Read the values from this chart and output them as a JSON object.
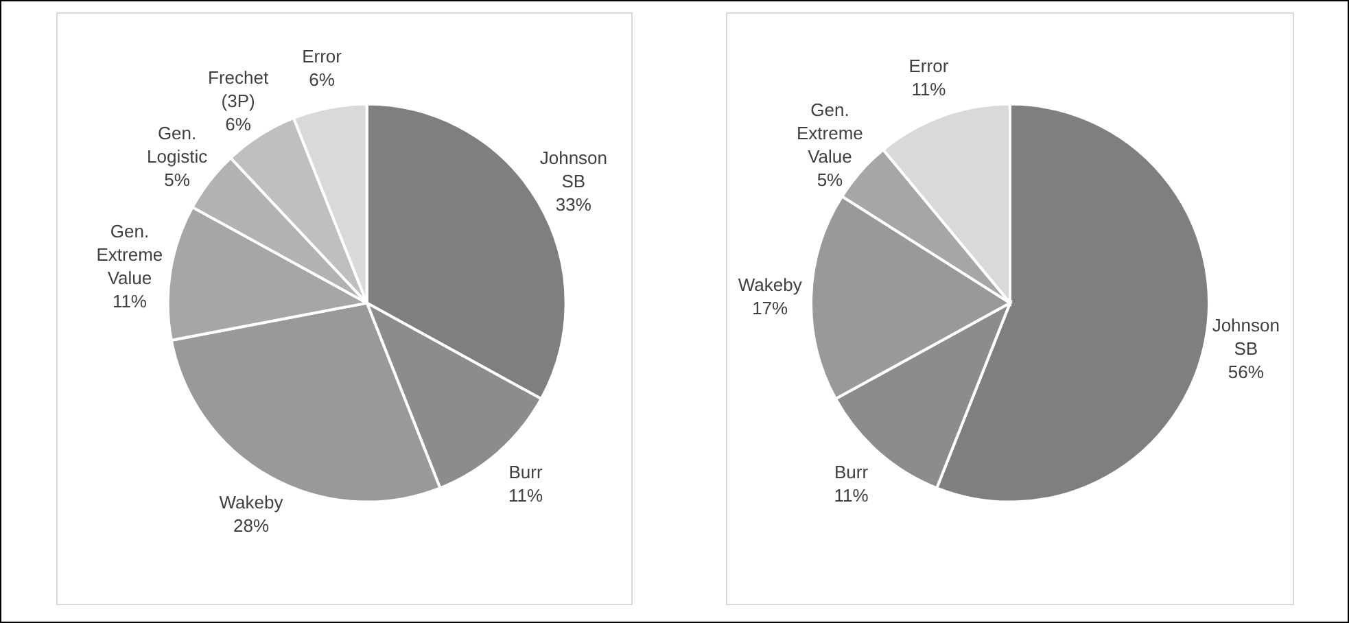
{
  "chart_data": [
    {
      "type": "pie",
      "categories": [
        "Johnson SB",
        "Burr",
        "Wakeby",
        "Gen. Extreme Value",
        "Gen. Logistic",
        "Frechet (3P)",
        "Error"
      ],
      "values": [
        33,
        11,
        28,
        11,
        5,
        6,
        6
      ],
      "value_labels": [
        "33%",
        "11%",
        "28%",
        "11%",
        "5%",
        "6%",
        "6%"
      ],
      "colors": [
        "#7f7f7f",
        "#8c8c8c",
        "#999999",
        "#a6a6a6",
        "#b2b2b2",
        "#bfbfbf",
        "#d9d9d9"
      ]
    },
    {
      "type": "pie",
      "categories": [
        "Johnson SB",
        "Burr",
        "Wakeby",
        "Gen. Extreme Value",
        "Error"
      ],
      "values": [
        56,
        11,
        17,
        5,
        11
      ],
      "value_labels": [
        "56%",
        "11%",
        "17%",
        "5%",
        "11%"
      ],
      "colors": [
        "#7f7f7f",
        "#8c8c8c",
        "#999999",
        "#a6a6a6",
        "#d9d9d9"
      ]
    }
  ]
}
